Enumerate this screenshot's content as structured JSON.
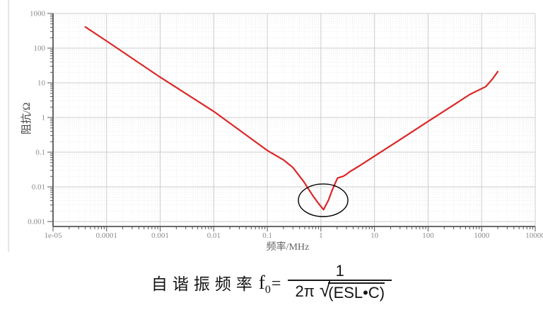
{
  "colors": {
    "curve": "#dc2626",
    "grid_major": "#cccccc",
    "grid_minor": "#e4e4e4",
    "axis": "#555555",
    "tick_text": "#8a8a8a",
    "x_title": "#666666",
    "y_title": "#444444",
    "annotation": "#000000",
    "page_edge_line": "#dedede"
  },
  "chart_data": {
    "type": "line",
    "title": "",
    "xlabel": "频率/MHz",
    "ylabel": "阻抗/Ω",
    "x_scale": "log",
    "y_scale": "log",
    "xlim": [
      1e-05,
      10000
    ],
    "ylim": [
      0.001,
      1000
    ],
    "grid": {
      "major": true,
      "minor": true
    },
    "legend": "none",
    "x_ticks": {
      "values": [
        1e-05,
        0.0001,
        0.001,
        0.01,
        0.1,
        1,
        10,
        100,
        1000,
        10000
      ],
      "labels": [
        "1e-05",
        "0.0001",
        "0.001",
        "0.01",
        "0.1",
        "1",
        "10",
        "100",
        "1000",
        "10000"
      ]
    },
    "y_ticks": {
      "values": [
        1000,
        100,
        10,
        1,
        0.1,
        0.01,
        0.001
      ],
      "labels": [
        "1000",
        "100",
        "10",
        "1",
        "0.1",
        "0.01",
        "0.001"
      ]
    },
    "series": [
      {
        "name": "impedance-curve",
        "color": "#dc2626",
        "points": [
          [
            4e-05,
            410
          ],
          [
            0.0001,
            160
          ],
          [
            0.001,
            14.5
          ],
          [
            0.01,
            1.5
          ],
          [
            0.1,
            0.112
          ],
          [
            0.2,
            0.06
          ],
          [
            0.3,
            0.036
          ],
          [
            0.48,
            0.014
          ],
          [
            0.71,
            0.0055
          ],
          [
            0.89,
            0.0034
          ],
          [
            1.12,
            0.0022
          ],
          [
            1.38,
            0.0041
          ],
          [
            1.6,
            0.0076
          ],
          [
            1.9,
            0.014
          ],
          [
            2.05,
            0.018
          ],
          [
            2.3,
            0.019
          ],
          [
            2.6,
            0.02
          ],
          [
            3.0,
            0.023
          ],
          [
            3.4,
            0.027
          ],
          [
            5.2,
            0.04
          ],
          [
            10,
            0.077
          ],
          [
            30,
            0.23
          ],
          [
            100,
            0.77
          ],
          [
            300,
            2.3
          ],
          [
            600,
            4.6
          ],
          [
            1200,
            7.8
          ],
          [
            1600,
            13
          ],
          [
            2000,
            21
          ]
        ]
      }
    ],
    "annotations": [
      {
        "shape": "ellipse",
        "name": "self-resonance-dip-highlight",
        "center": [
          1.1,
          0.0041
        ],
        "rx_decades": 0.462,
        "ry_decades": 0.47,
        "stroke": "#000000"
      }
    ]
  },
  "formula": {
    "label": "自谐振频率",
    "symbol": "f",
    "symbol_sub": "0",
    "equals": "=",
    "numerator": "1",
    "den_prefix": "2π",
    "radical": "√",
    "radicand": "(ESL•C)"
  }
}
